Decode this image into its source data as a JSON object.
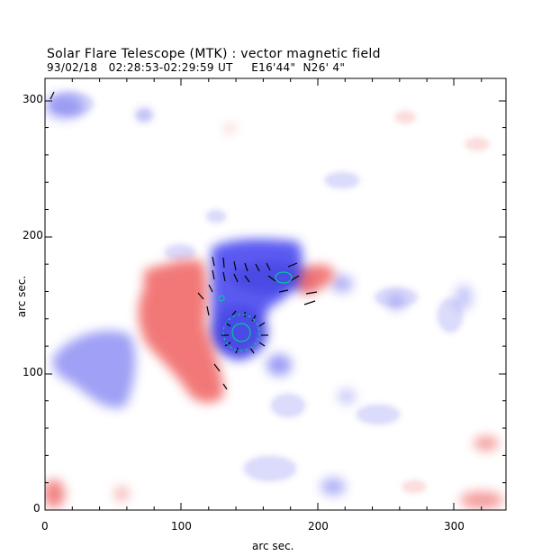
{
  "title": "Solar Flare Telescope (MTK) : vector magnetic field",
  "subtitle": "93/02/18   02:28:53-02:29:59 UT     E16'44\"  N26' 4\"",
  "axes": {
    "xlabel": "arc sec.",
    "ylabel": "arc sec.",
    "x_ticks": [
      "0",
      "100",
      "200",
      "300"
    ],
    "y_ticks": [
      "0",
      "100",
      "200",
      "300"
    ],
    "xlim": [
      0,
      338
    ],
    "ylim": [
      0,
      316
    ]
  },
  "colors": {
    "positive_polarity": "#f05a5a",
    "negative_polarity": "#3c3cf0",
    "vector_lines": "#000000",
    "contours": "#00c8a0"
  }
}
